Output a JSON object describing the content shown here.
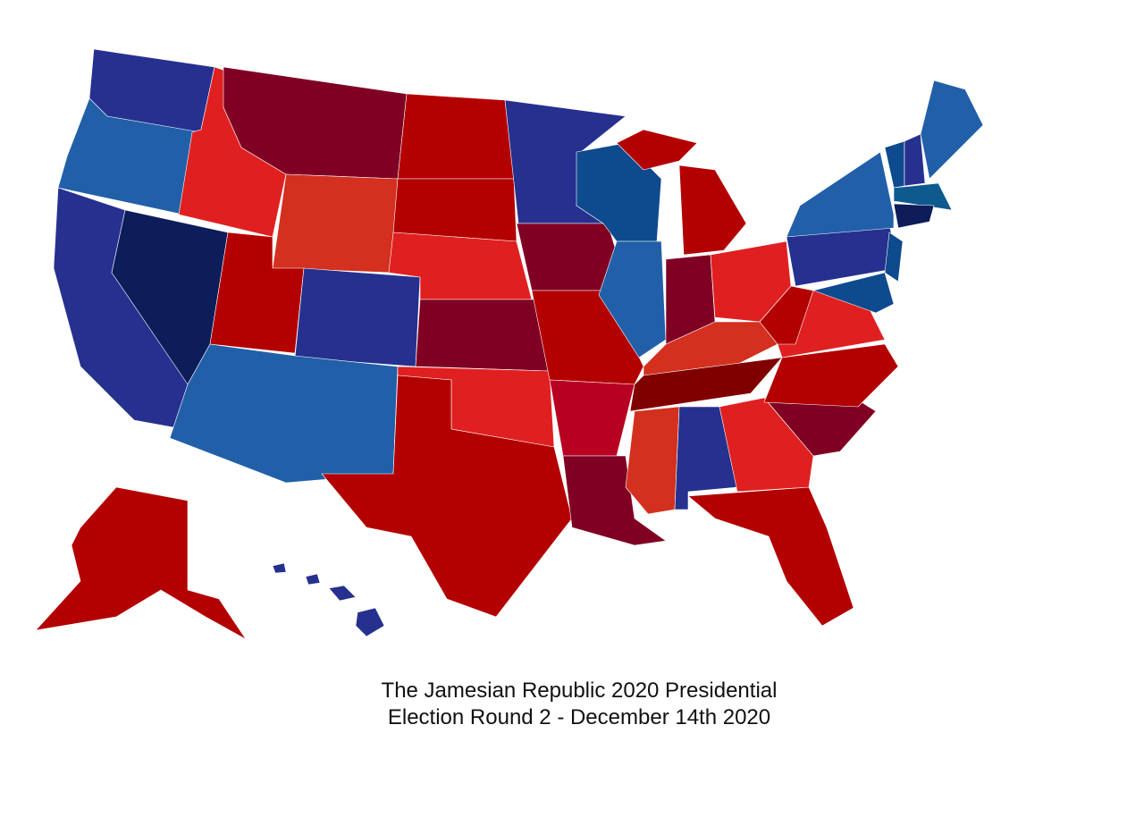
{
  "caption": {
    "lines": [
      "The Jamesian Republic 2020 Presidential",
      "Election Round 2 - December 14th 2020"
    ]
  }
}
